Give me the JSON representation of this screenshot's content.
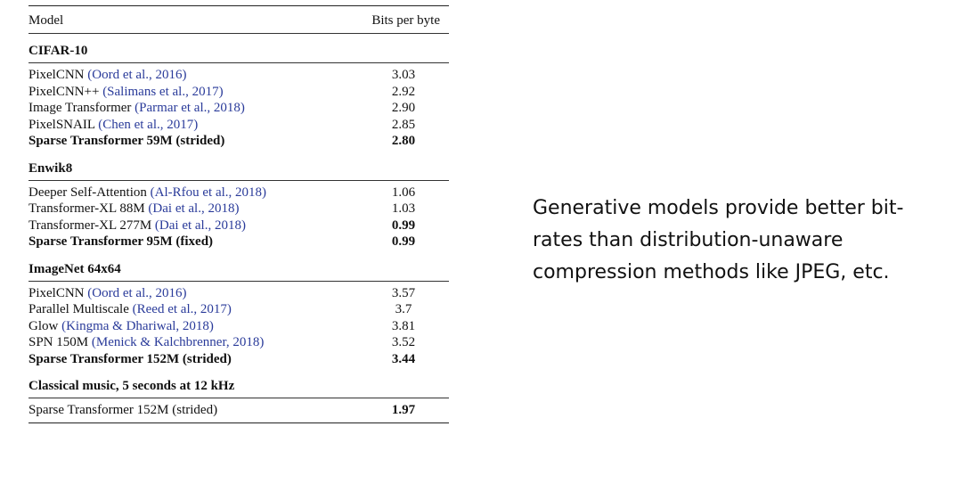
{
  "table": {
    "header": {
      "model": "Model",
      "metric": "Bits per byte"
    },
    "sections": [
      {
        "title": "CIFAR-10",
        "rows": [
          {
            "model": "PixelCNN ",
            "cite": "(Oord et al., 2016)",
            "value": "3.03",
            "bold": false
          },
          {
            "model": "PixelCNN++ ",
            "cite": "(Salimans et al., 2017)",
            "value": "2.92",
            "bold": false
          },
          {
            "model": "Image Transformer ",
            "cite": "(Parmar et al., 2018)",
            "value": "2.90",
            "bold": false
          },
          {
            "model": "PixelSNAIL ",
            "cite": "(Chen et al., 2017)",
            "value": "2.85",
            "bold": false
          },
          {
            "model": "Sparse Transformer 59M (strided)",
            "cite": "",
            "value": "2.80",
            "bold": true
          }
        ]
      },
      {
        "title": "Enwik8",
        "rows": [
          {
            "model": "Deeper Self-Attention ",
            "cite": "(Al-Rfou et al., 2018)",
            "value": "1.06",
            "bold": false
          },
          {
            "model": "Transformer-XL 88M ",
            "cite": "(Dai et al., 2018)",
            "value": "1.03",
            "bold": false
          },
          {
            "model": "Transformer-XL 277M ",
            "cite": "(Dai et al., 2018)",
            "value": "0.99",
            "bold": false,
            "value_bold": true
          },
          {
            "model": "Sparse Transformer 95M (fixed)",
            "cite": "",
            "value": "0.99",
            "bold": true
          }
        ]
      },
      {
        "title": "ImageNet 64x64",
        "rows": [
          {
            "model": "PixelCNN ",
            "cite": "(Oord et al., 2016)",
            "value": "3.57",
            "bold": false
          },
          {
            "model": "Parallel Multiscale ",
            "cite": "(Reed et al., 2017)",
            "value": "3.7",
            "bold": false
          },
          {
            "model": "Glow ",
            "cite": "(Kingma & Dhariwal, 2018)",
            "value": "3.81",
            "bold": false
          },
          {
            "model": "SPN 150M ",
            "cite": "(Menick & Kalchbrenner, 2018)",
            "value": "3.52",
            "bold": false
          },
          {
            "model": "Sparse Transformer 152M (strided)",
            "cite": "",
            "value": "3.44",
            "bold": true
          }
        ]
      },
      {
        "title": "Classical music, 5 seconds at 12 kHz",
        "rows": [
          {
            "model": "Sparse Transformer 152M (strided)",
            "cite": "",
            "value": "1.97",
            "bold": false,
            "value_bold": true
          }
        ]
      }
    ]
  },
  "caption": "Generative models provide better bit-rates than distribution-unaware compression methods like JPEG, etc.",
  "colors": {
    "citation": "#2a3b9a",
    "text": "#111111"
  }
}
